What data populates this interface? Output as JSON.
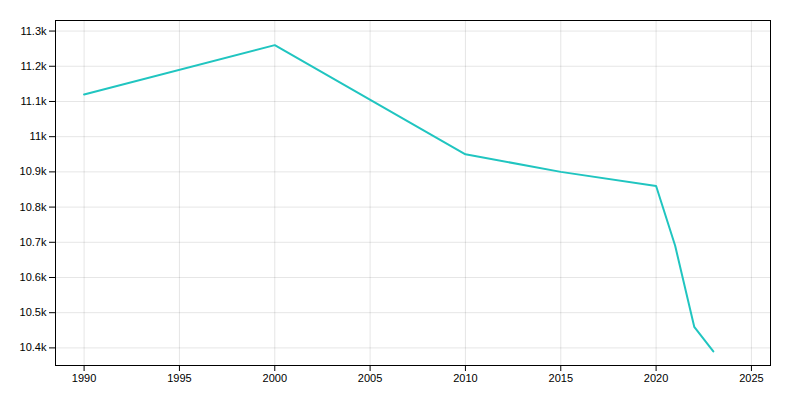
{
  "chart_data": {
    "type": "line",
    "x": [
      1990,
      2000,
      2010,
      2015,
      2020,
      2021,
      2022,
      2023
    ],
    "values": [
      11120,
      11260,
      10950,
      10900,
      10860,
      10690,
      10460,
      10390
    ],
    "color": "#20c5c0",
    "xlim": [
      1988.5,
      2026
    ],
    "xticks": [
      1990,
      1995,
      2000,
      2005,
      2010,
      2015,
      2020,
      2025
    ],
    "ylim": [
      10350,
      11330
    ],
    "yticks": [
      {
        "value": 10400,
        "label": "10.4k"
      },
      {
        "value": 10500,
        "label": "10.5k"
      },
      {
        "value": 10600,
        "label": "10.6k"
      },
      {
        "value": 10700,
        "label": "10.7k"
      },
      {
        "value": 10800,
        "label": "10.8k"
      },
      {
        "value": 10900,
        "label": "10.9k"
      },
      {
        "value": 11000,
        "label": "11k"
      },
      {
        "value": 11100,
        "label": "11.1k"
      },
      {
        "value": 11200,
        "label": "11.2k"
      },
      {
        "value": 11300,
        "label": "11.3k"
      }
    ],
    "grid": true
  }
}
